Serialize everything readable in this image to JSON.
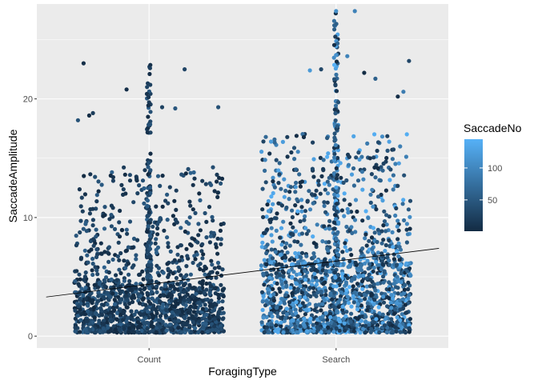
{
  "chart_data": {
    "type": "scatter",
    "subtype": "jitter",
    "title": "",
    "xlabel": "ForagingType",
    "ylabel": "SaccadeAmplitude",
    "categories": [
      "Count",
      "Search"
    ],
    "ylim": [
      -1,
      28
    ],
    "yticks": [
      0,
      10,
      20
    ],
    "grid": true,
    "theme_background": "#EBEBEB",
    "gridline_color": "#FFFFFF",
    "trend_line": {
      "color": "#000000",
      "x_start": 0.45,
      "y_start": 3.3,
      "x_end": 2.55,
      "y_end": 7.4
    },
    "color_scale": {
      "variable": "SaccadeNo",
      "low_color": "#132B43",
      "high_color": "#56B1F7",
      "range": [
        1,
        145
      ],
      "breaks": [
        50,
        100
      ],
      "legend_position": "right"
    },
    "series": [
      {
        "category": "Count",
        "jitter_width": 0.4,
        "n_points": 1600,
        "bulk_range": [
          0.3,
          4
        ],
        "spine_range": [
          4,
          23
        ],
        "saccade_no_range": [
          1,
          60
        ],
        "outliers": [
          [
            -0.35,
            23.0
          ],
          [
            -0.3,
            18.8
          ],
          [
            -0.32,
            18.6
          ],
          [
            -0.38,
            18.2
          ],
          [
            -0.12,
            20.8
          ],
          [
            0.19,
            22.5
          ],
          [
            0.07,
            19.3
          ],
          [
            0.37,
            19.3
          ],
          [
            0.14,
            19.2
          ]
        ]
      },
      {
        "category": "Search",
        "jitter_width": 0.4,
        "n_points": 1900,
        "bulk_range": [
          0.3,
          6
        ],
        "spine_range": [
          6,
          27.5
        ],
        "saccade_no_range": [
          1,
          145
        ],
        "outliers": [
          [
            0.0,
            27.4
          ],
          [
            0.1,
            27.4
          ],
          [
            0.06,
            23.6
          ],
          [
            0.0,
            23.7
          ],
          [
            0.39,
            23.2
          ],
          [
            -0.14,
            22.4
          ],
          [
            -0.08,
            22.5
          ],
          [
            0.15,
            22.2
          ],
          [
            0.21,
            21.7
          ],
          [
            0.36,
            20.6
          ],
          [
            0.33,
            20.2
          ]
        ]
      }
    ]
  }
}
